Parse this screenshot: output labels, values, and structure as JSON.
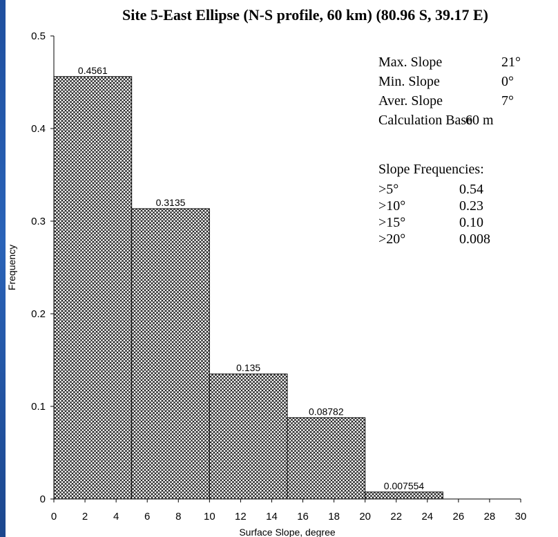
{
  "chart_data": {
    "type": "bar",
    "title": "Site 5-East Ellipse (N-S profile, 60 km) (80.96 S, 39.17 E)",
    "xlabel": "Surface Slope, degree",
    "ylabel": "Frequency",
    "xlim": [
      0,
      30
    ],
    "ylim": [
      0,
      0.5
    ],
    "x_ticks": [
      "0",
      "2",
      "4",
      "6",
      "8",
      "10",
      "12",
      "14",
      "16",
      "18",
      "20",
      "22",
      "24",
      "26",
      "28",
      "30"
    ],
    "y_ticks": [
      "0",
      "0.1",
      "0.2",
      "0.3",
      "0.4",
      "0.5"
    ],
    "grid": false,
    "legend": "none",
    "bins": [
      {
        "x0": 0,
        "x1": 5,
        "value": 0.4561,
        "label": "0.4561"
      },
      {
        "x0": 5,
        "x1": 10,
        "value": 0.3135,
        "label": "0.3135"
      },
      {
        "x0": 10,
        "x1": 15,
        "value": 0.135,
        "label": "0.135"
      },
      {
        "x0": 15,
        "x1": 20,
        "value": 0.08782,
        "label": "0.08782"
      },
      {
        "x0": 20,
        "x1": 25,
        "value": 0.007554,
        "label": "0.007554"
      }
    ],
    "stats": [
      {
        "label": "Max. Slope",
        "value": "21°"
      },
      {
        "label": "Min. Slope",
        "value": "0°"
      },
      {
        "label": "Aver. Slope",
        "value": "7°"
      },
      {
        "label": "Calculation Base",
        "value": "60 m"
      }
    ],
    "frequencies_heading": "Slope Frequencies:",
    "frequencies": [
      {
        "label": ">5°",
        "value": "0.54"
      },
      {
        "label": ">10°",
        "value": "0.23"
      },
      {
        "label": ">15°",
        "value": "0.10"
      },
      {
        "label": ">20°",
        "value": "0.008"
      }
    ],
    "colors": {
      "bar_fill": "#ffffff",
      "hatch": "#000000",
      "background": "#ffffff",
      "edge": "#2a63b8"
    }
  }
}
